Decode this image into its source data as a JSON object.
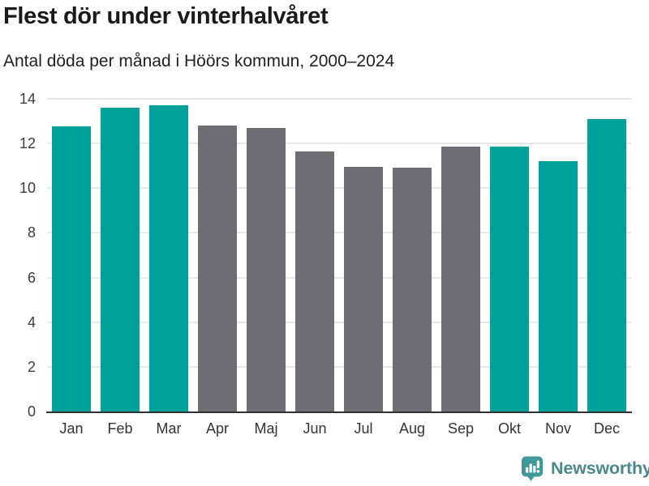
{
  "header": {
    "title": "Flest dör under vinterhalvåret",
    "subtitle": "Antal döda per månad i Höörs kommun, 2000–2024"
  },
  "chart_data": {
    "type": "bar",
    "title": "Flest dör under vinterhalvåret",
    "subtitle": "Antal döda per månad i Höörs kommun, 2000–2024",
    "categories": [
      "Jan",
      "Feb",
      "Mar",
      "Apr",
      "Maj",
      "Jun",
      "Jul",
      "Aug",
      "Sep",
      "Okt",
      "Nov",
      "Dec"
    ],
    "values": [
      12.75,
      13.6,
      13.7,
      12.8,
      12.7,
      11.65,
      10.95,
      10.9,
      11.85,
      11.85,
      11.2,
      13.1
    ],
    "bar_colors": [
      "teal",
      "teal",
      "teal",
      "gray",
      "gray",
      "gray",
      "gray",
      "gray",
      "gray",
      "teal",
      "teal",
      "teal"
    ],
    "xlabel": "",
    "ylabel": "",
    "ylim": [
      0,
      14
    ],
    "yticks": [
      0,
      2,
      4,
      6,
      8,
      10,
      12,
      14
    ],
    "grid": true,
    "legend": "none",
    "colors": {
      "highlight": "#00a19b",
      "muted": "#6d6d73",
      "gridline": "#e9e9e9",
      "axis": "#333333"
    }
  },
  "branding": {
    "logo_text": "Newsworthy",
    "logo_icon": "newsworthy-speech-bubble-chart-icon",
    "logo_text_color": "#4d898c",
    "logo_icon_color": "#3f999b"
  }
}
